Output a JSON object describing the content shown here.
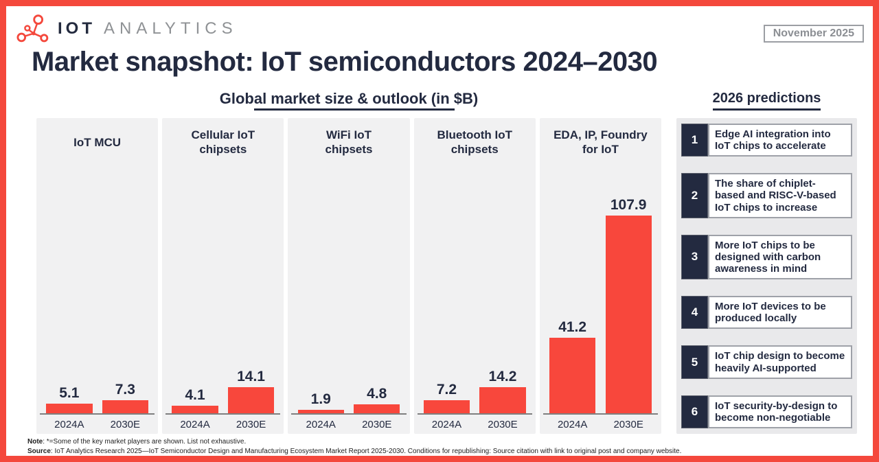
{
  "header": {
    "logo": {
      "icon": "molecule-network-icon",
      "primary": "IOT",
      "secondary": "ANALYTICS"
    },
    "date_badge": "November 2025",
    "title": "Market snapshot: IoT semiconductors 2024–2030"
  },
  "chart_data": {
    "type": "bar",
    "title": "Global market size & outlook (in $B)",
    "unit": "$B",
    "categories": [
      "2024A",
      "2030E"
    ],
    "panels": [
      {
        "title": "IoT MCU",
        "title_display": "IoT MCU",
        "values": [
          5.1,
          7.3
        ]
      },
      {
        "title": "Cellular IoT chipsets",
        "title_display": "Cellular IoT\nchipsets",
        "values": [
          4.1,
          14.1
        ]
      },
      {
        "title": "WiFi IoT chipsets",
        "title_display": "WiFi IoT\nchipsets",
        "values": [
          1.9,
          4.8
        ]
      },
      {
        "title": "Bluetooth IoT chipsets",
        "title_display": "Bluetooth IoT\nchipsets",
        "values": [
          7.2,
          14.2
        ]
      },
      {
        "title": "EDA, IP, Foundry for IoT",
        "title_display": "EDA, IP, Foundry\nfor IoT",
        "values": [
          41.2,
          107.9
        ]
      }
    ],
    "ylim": [
      0,
      115
    ],
    "grid": false,
    "legend": "none",
    "value_labels_shown": true
  },
  "predictions": {
    "heading": "2026 predictions",
    "items": [
      {
        "number": "1",
        "text": "Edge AI integration into IoT chips to accelerate"
      },
      {
        "number": "2",
        "text": "The share of chiplet-based and RISC-V-based IoT chips to increase"
      },
      {
        "number": "3",
        "text": "More IoT chips to be designed with carbon awareness in mind"
      },
      {
        "number": "4",
        "text": "More IoT devices to be produced locally"
      },
      {
        "number": "5",
        "text": "IoT chip design to become heavily AI-supported"
      },
      {
        "number": "6",
        "text": "IoT security-by-design to become non-negotiable"
      }
    ]
  },
  "footer": {
    "note_label": "Note",
    "note_text": ": *=Some of the key market players are shown. List not exhaustive.",
    "source_label": "Source",
    "source_text": ": IoT Analytics Research 2025—IoT Semiconductor Design and Manufacturing Ecosystem Market Report 2025-2030. Conditions for republishing: Source citation with link to original post and company website."
  },
  "colors": {
    "accent_red": "#F8473C",
    "frame_red": "#F4483C",
    "navy": "#232A40",
    "panel_gray": "#F1F1F2",
    "predictions_backing_gray": "#E9E9EB",
    "badge_gray": "#9B9EA3",
    "logo_secondary_gray": "#8F9295",
    "axis_gray": "#7F7F7F"
  }
}
